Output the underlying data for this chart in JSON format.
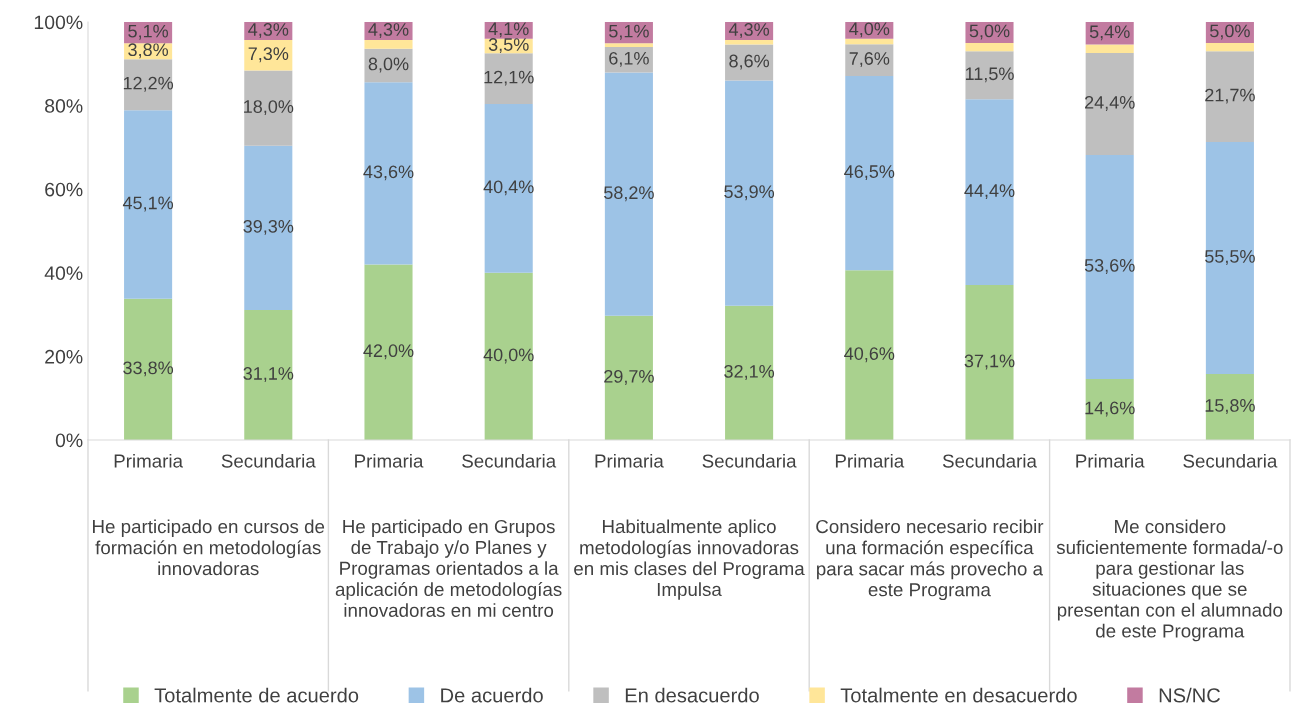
{
  "chart_data": {
    "type": "bar",
    "stacked": true,
    "categories": [
      "Primaria",
      "Secundaria",
      "Primaria",
      "Secundaria",
      "Primaria",
      "Secundaria",
      "Primaria",
      "Secundaria",
      "Primaria",
      "Secundaria"
    ],
    "series": [
      {
        "name": "Totalmente de acuerdo",
        "color": "#a9d18e",
        "values": [
          33.8,
          31.1,
          42.0,
          40.0,
          29.7,
          32.1,
          40.6,
          37.1,
          14.6,
          15.8
        ],
        "value_labels": [
          "33,8%",
          "31,1%",
          "42,0%",
          "40,0%",
          "29,7%",
          "32,1%",
          "40,6%",
          "37,1%",
          "14,6%",
          "15,8%"
        ]
      },
      {
        "name": "De acuerdo",
        "color": "#9dc3e6",
        "values": [
          45.1,
          39.3,
          43.6,
          40.4,
          58.2,
          53.9,
          46.5,
          44.4,
          53.6,
          55.5
        ],
        "value_labels": [
          "45,1%",
          "39,3%",
          "43,6%",
          "40,4%",
          "58,2%",
          "53,9%",
          "46,5%",
          "44,4%",
          "53,6%",
          "55,5%"
        ]
      },
      {
        "name": "En desacuerdo",
        "color": "#bfbfbf",
        "values": [
          12.2,
          18.0,
          8.0,
          12.1,
          6.1,
          8.6,
          7.6,
          11.5,
          24.4,
          21.7
        ],
        "value_labels": [
          "12,2%",
          "18,0%",
          "8,0%",
          "12,1%",
          "6,1%",
          "8,6%",
          "7,6%",
          "11,5%",
          "24,4%",
          "21,7%"
        ]
      },
      {
        "name": "Totalmente en desacuerdo",
        "color": "#ffe699",
        "values": [
          3.8,
          7.3,
          2.1,
          3.5,
          0.9,
          1.1,
          1.3,
          2.0,
          2.0,
          2.0
        ],
        "value_labels": [
          "3,8%",
          "7,3%",
          null,
          "3,5%",
          null,
          null,
          null,
          null,
          null,
          null
        ]
      },
      {
        "name": "NS/NC",
        "color": "#c27ba0",
        "values": [
          5.1,
          4.3,
          4.3,
          4.1,
          5.1,
          4.3,
          4.0,
          5.0,
          5.4,
          5.0
        ],
        "value_labels": [
          "5,1%",
          "4,3%",
          "4,3%",
          "4,1%",
          "5,1%",
          "4,3%",
          "4,0%",
          "5,0%",
          "5,4%",
          "5,0%"
        ]
      }
    ],
    "ylim": [
      0,
      100
    ],
    "yticks": [
      {
        "value": 0,
        "label": "0%"
      },
      {
        "value": 20,
        "label": "20%"
      },
      {
        "value": 40,
        "label": "40%"
      },
      {
        "value": 60,
        "label": "60%"
      },
      {
        "value": 80,
        "label": "80%"
      },
      {
        "value": 100,
        "label": "100%"
      }
    ],
    "grid": false,
    "legend": "bottom",
    "annotations": [
      "He participado en cursos de formación en metodologías innovadoras",
      "He participado en Grupos de Trabajo y/o Planes y Programas orientados a la aplicación de metodologías innovadoras en mi centro",
      "Habitualmente aplico metodologías innovadoras en mis clases del Programa Impulsa",
      "Considero necesario recibir una formación específica para sacar más provecho a este Programa",
      "Me considero suficientemente formada/-o para gestionar las situaciones que se presentan con el alumnado de este Programa"
    ]
  }
}
